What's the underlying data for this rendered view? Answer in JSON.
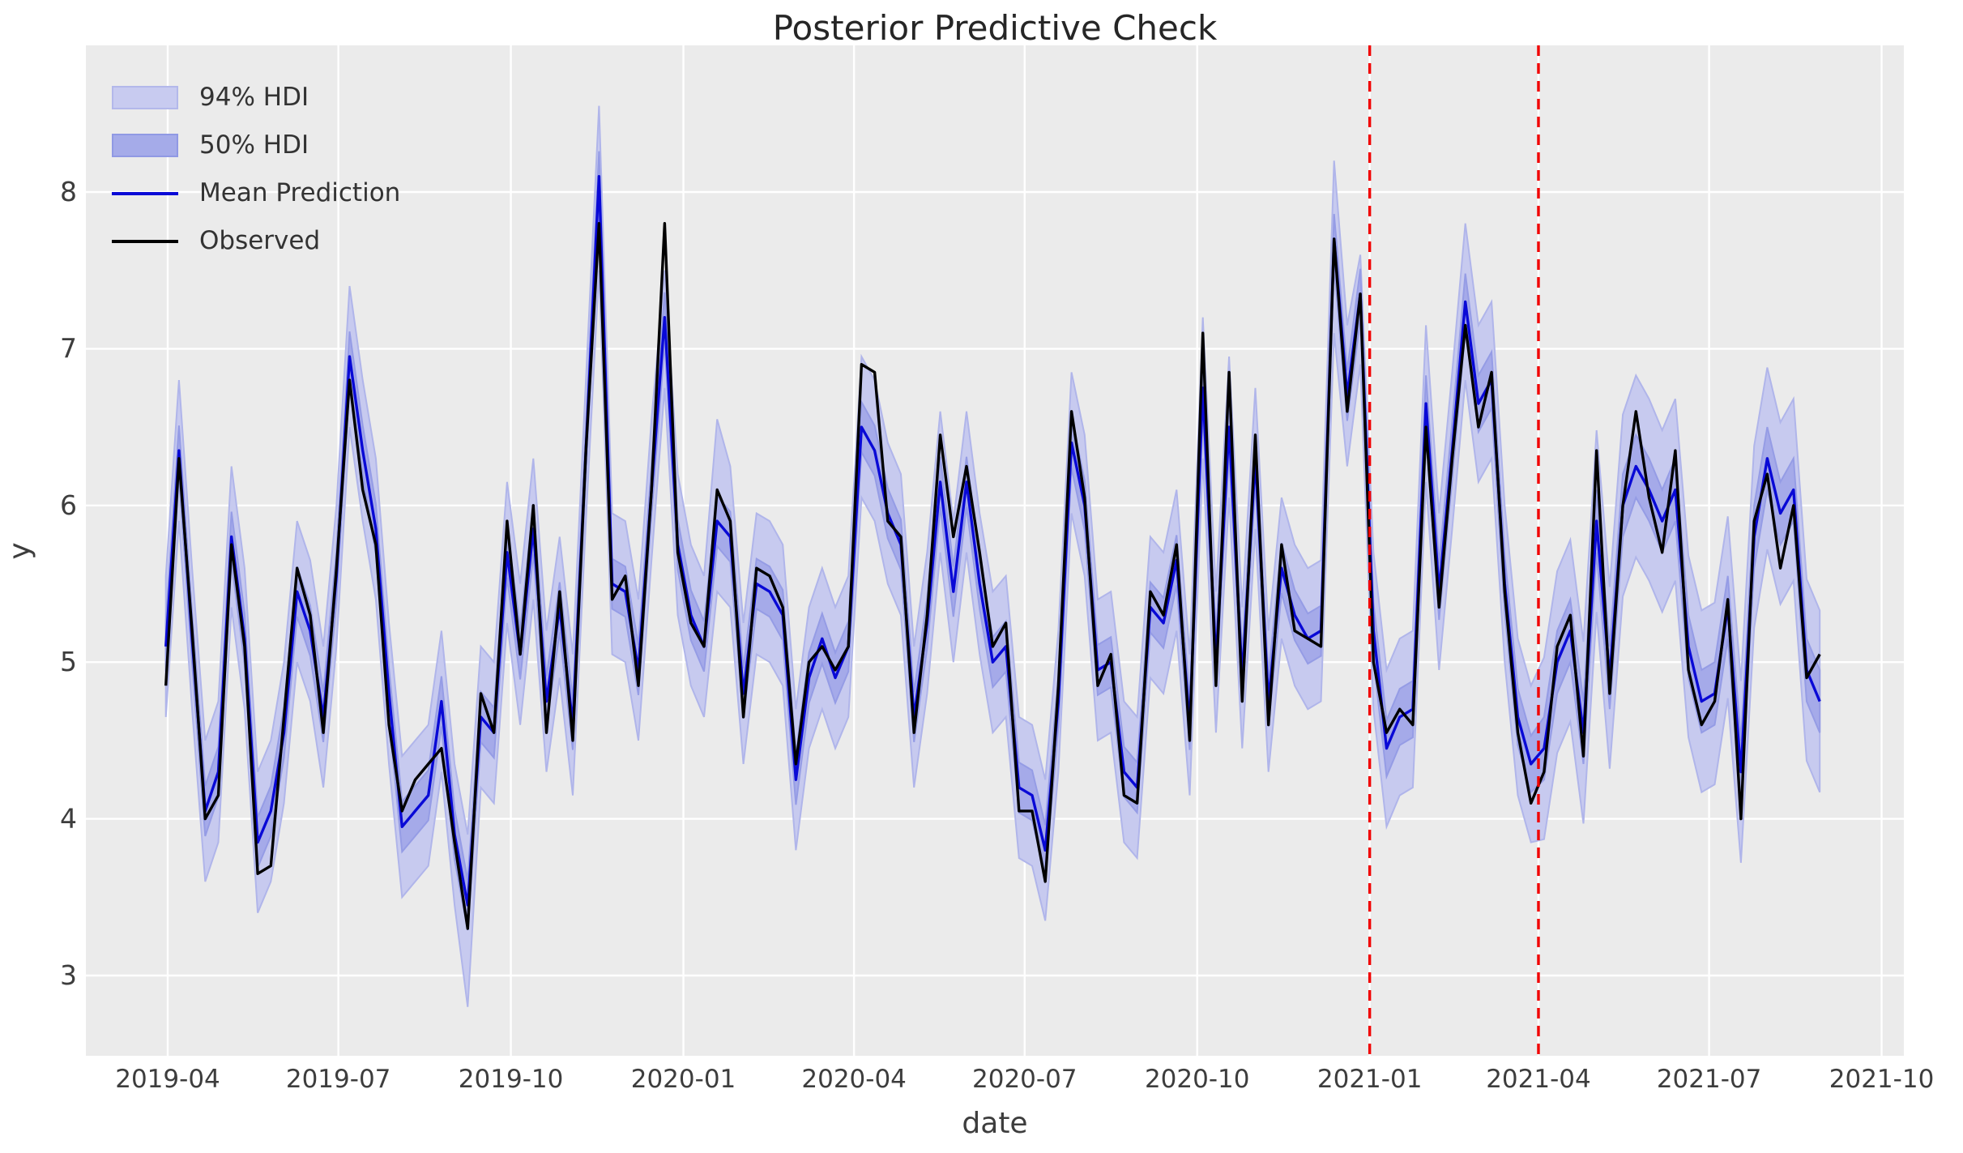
{
  "title": "Posterior Predictive Check",
  "axes": {
    "xlabel": "date",
    "ylabel": "y",
    "x_ticks": [
      {
        "date": "2019-04-01",
        "label": "2019-04"
      },
      {
        "date": "2019-07-01",
        "label": "2019-07"
      },
      {
        "date": "2019-10-01",
        "label": "2019-10"
      },
      {
        "date": "2020-01-01",
        "label": "2020-01"
      },
      {
        "date": "2020-04-01",
        "label": "2020-04"
      },
      {
        "date": "2020-07-01",
        "label": "2020-07"
      },
      {
        "date": "2020-10-01",
        "label": "2020-10"
      },
      {
        "date": "2021-01-01",
        "label": "2021-01"
      },
      {
        "date": "2021-04-01",
        "label": "2021-04"
      },
      {
        "date": "2021-07-01",
        "label": "2021-07"
      },
      {
        "date": "2021-10-01",
        "label": "2021-10"
      }
    ],
    "y_ticks": [
      3,
      4,
      5,
      6,
      7,
      8
    ]
  },
  "legend": {
    "items": [
      {
        "label": "94% HDI",
        "kind": "band",
        "color": "#c8cbf0"
      },
      {
        "label": "50% HDI",
        "kind": "band",
        "color": "#a5abe9"
      },
      {
        "label": "Mean Prediction",
        "kind": "line",
        "color": "#0909d6"
      },
      {
        "label": "Observed",
        "kind": "line",
        "color": "#000000"
      }
    ]
  },
  "colors": {
    "figure_bg": "#ffffff",
    "axes_bg": "#ebebeb",
    "grid": "#ffffff",
    "observed": "#000000",
    "mean": "#0909d6",
    "hdi94_fill": "#c7caef",
    "hdi94_edge": "#b0b5ea",
    "hdi50_fill": "#a5aae9",
    "hdi50_edge": "#959ce5",
    "split_line": "#f10000",
    "title_text": "#262626",
    "tick_text": "#3d3d3d"
  },
  "chart_data": {
    "type": "line",
    "x_start": "2019-03-31",
    "x_freq_days": 7,
    "n_points": 127,
    "ylim": [
      2.49,
      8.94
    ],
    "grid": true,
    "legend_position": "upper-left",
    "split_line_dates": [
      "2021-01-01",
      "2021-04-01"
    ],
    "series": [
      {
        "name": "Observed",
        "values": [
          4.85,
          6.3,
          5.2,
          4.0,
          4.15,
          5.75,
          5.1,
          3.65,
          3.7,
          4.65,
          5.6,
          5.3,
          4.55,
          5.6,
          6.8,
          6.1,
          5.75,
          4.6,
          4.05,
          4.25,
          4.35,
          4.45,
          3.85,
          3.3,
          4.8,
          4.55,
          5.9,
          5.05,
          6.0,
          4.55,
          5.45,
          4.5,
          6.35,
          7.8,
          5.4,
          5.55,
          4.85,
          6.1,
          7.8,
          5.7,
          5.25,
          5.1,
          6.1,
          5.9,
          4.65,
          5.6,
          5.55,
          5.35,
          4.35,
          5.0,
          5.1,
          4.95,
          5.1,
          6.9,
          6.85,
          5.9,
          5.8,
          4.55,
          5.3,
          6.45,
          5.8,
          6.25,
          5.7,
          5.1,
          5.25,
          4.05,
          4.05,
          3.6,
          4.85,
          6.6,
          6.05,
          4.85,
          5.05,
          4.15,
          4.1,
          5.45,
          5.3,
          5.75,
          4.5,
          7.1,
          4.85,
          6.85,
          4.75,
          6.45,
          4.6,
          5.75,
          5.2,
          5.15,
          5.1,
          7.7,
          6.6,
          7.35,
          5.0,
          4.55,
          4.7,
          4.6,
          6.5,
          5.35,
          6.3,
          7.15,
          6.5,
          6.85,
          5.45,
          4.55,
          4.1,
          4.3,
          5.1,
          5.3,
          4.4,
          6.35,
          4.8,
          6.0,
          6.6,
          6.05,
          5.7,
          6.35,
          4.95,
          4.6,
          4.75,
          5.4,
          4.0,
          5.9,
          6.2,
          5.6,
          6.0,
          4.9,
          5.05
        ]
      },
      {
        "name": "Mean Prediction",
        "values": [
          5.1,
          6.35,
          5.15,
          4.05,
          4.3,
          5.8,
          5.15,
          3.85,
          4.05,
          4.55,
          5.45,
          5.2,
          4.65,
          5.55,
          6.95,
          6.35,
          5.85,
          4.8,
          3.95,
          4.05,
          4.15,
          4.75,
          3.9,
          3.45,
          4.65,
          4.55,
          5.7,
          5.05,
          5.85,
          4.75,
          5.35,
          4.6,
          6.35,
          8.1,
          5.5,
          5.45,
          4.95,
          6.1,
          7.2,
          5.75,
          5.3,
          5.1,
          5.9,
          5.8,
          4.8,
          5.5,
          5.45,
          5.3,
          4.25,
          4.9,
          5.15,
          4.9,
          5.1,
          6.5,
          6.35,
          5.95,
          5.75,
          4.65,
          5.25,
          6.15,
          5.45,
          6.15,
          5.5,
          5.0,
          5.1,
          4.2,
          4.15,
          3.8,
          4.75,
          6.4,
          6.0,
          4.95,
          5.0,
          4.3,
          4.2,
          5.35,
          5.25,
          5.65,
          4.6,
          6.75,
          5.0,
          6.5,
          4.9,
          6.3,
          4.75,
          5.6,
          5.3,
          5.15,
          5.2,
          7.7,
          6.7,
          7.35,
          5.2,
          4.45,
          4.65,
          4.7,
          6.65,
          5.45,
          6.35,
          7.3,
          6.65,
          6.8,
          5.5,
          4.65,
          4.35,
          4.45,
          5.0,
          5.2,
          4.55,
          5.9,
          4.9,
          6.0,
          6.25,
          6.1,
          5.9,
          6.1,
          5.1,
          4.75,
          4.8,
          5.35,
          4.3,
          5.8,
          6.3,
          5.95,
          6.1,
          4.95,
          4.75
        ]
      }
    ],
    "hdi_bands": {
      "note": "half-widths around Mean Prediction, per index segment",
      "hdi94_halfwidth_segments": [
        {
          "from": 0,
          "to": 91,
          "w": 0.45
        },
        {
          "from": 92,
          "to": 104,
          "w": 0.5
        },
        {
          "from": 105,
          "to": 126,
          "w": 0.58
        }
      ],
      "hdi50_halfwidth_segments": [
        {
          "from": 0,
          "to": 91,
          "w": 0.16
        },
        {
          "from": 92,
          "to": 104,
          "w": 0.18
        },
        {
          "from": 105,
          "to": 126,
          "w": 0.2
        }
      ],
      "hdi94_hi_overrides": {
        "33": 8.55,
        "38": 7.5,
        "42": 6.55,
        "89": 8.2,
        "91": 7.6
      },
      "hdi94_lo_overrides": {
        "23": 2.8,
        "33": 7.5,
        "89": 7.1
      }
    }
  }
}
